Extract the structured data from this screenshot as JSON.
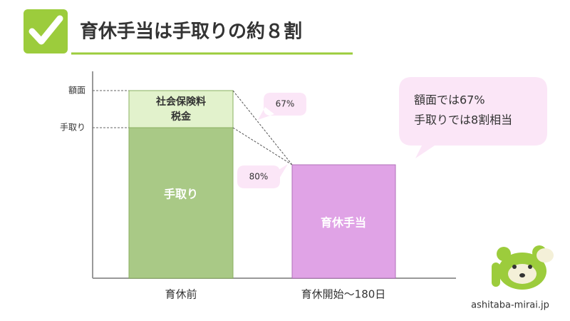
{
  "header": {
    "title": "育休手当は手取りの約８割"
  },
  "diagram": {
    "level_labels": [
      "額面",
      "手取り"
    ],
    "left_bar": {
      "top_segment": [
        "社会保険料",
        "税金"
      ],
      "bottom_segment": "手取り",
      "label": "育休前"
    },
    "right_bar": {
      "segment": "育休手当",
      "label": "育休開始〜180日"
    },
    "callouts": [
      "67%",
      "80%"
    ],
    "note": [
      "額面では67%",
      "手取りでは8割相当"
    ]
  },
  "footer": {
    "site": "ashitaba-mirai.jp"
  }
}
